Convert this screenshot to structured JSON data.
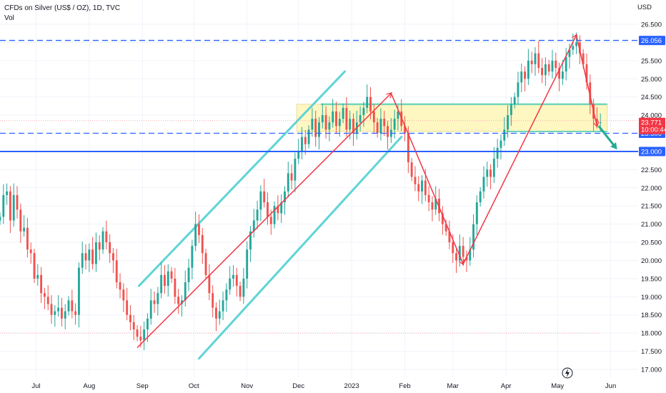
{
  "header": {
    "title": "CFDs on Silver (US$ / OZ), 1D, TVC",
    "subtitle": "Vol"
  },
  "chart_data": {
    "type": "candlestick",
    "currency": "USD",
    "ylim": [
      16.8,
      27.0
    ],
    "y_ticks": [
      17.0,
      17.5,
      18.0,
      18.5,
      19.0,
      19.5,
      20.0,
      20.5,
      21.0,
      21.5,
      22.0,
      22.5,
      23.0,
      23.5,
      24.0,
      24.5,
      25.0,
      25.5,
      26.0,
      26.5
    ],
    "y_tick_labels": [
      "17.000",
      "17.500",
      "18.000",
      "18.500",
      "19.000",
      "19.500",
      "20.000",
      "20.500",
      "21.000",
      "21.500",
      "22.000",
      "22.500",
      "23.000",
      "23.500",
      "24.000",
      "24.500",
      "25.000",
      "25.500",
      "26.000",
      "26.500"
    ],
    "x_ticks": [
      {
        "label": "Jul",
        "day": 3
      },
      {
        "label": "Aug",
        "day": 34
      },
      {
        "label": "Sep",
        "day": 65
      },
      {
        "label": "Oct",
        "day": 95
      },
      {
        "label": "Nov",
        "day": 126
      },
      {
        "label": "Dec",
        "day": 156
      },
      {
        "label": "2023",
        "day": 187
      },
      {
        "label": "Feb",
        "day": 218
      },
      {
        "label": "Mar",
        "day": 246
      },
      {
        "label": "Apr",
        "day": 277
      },
      {
        "label": "May",
        "day": 307
      },
      {
        "label": "Jun",
        "day": 338
      }
    ],
    "xlim": [
      -18,
      354
    ],
    "closes": [
      [
        -18,
        21.2
      ],
      [
        -16,
        21.8
      ],
      [
        -14,
        21.9
      ],
      [
        -12,
        21.1
      ],
      [
        -10,
        21.8
      ],
      [
        -8,
        21.4
      ],
      [
        -6,
        20.8
      ],
      [
        -4,
        20.9
      ],
      [
        -2,
        20.3
      ],
      [
        0,
        20.2
      ],
      [
        2,
        19.5
      ],
      [
        4,
        19.6
      ],
      [
        6,
        19.1
      ],
      [
        8,
        19.0
      ],
      [
        10,
        18.8
      ],
      [
        12,
        18.5
      ],
      [
        14,
        18.6
      ],
      [
        16,
        18.7
      ],
      [
        18,
        18.4
      ],
      [
        20,
        18.6
      ],
      [
        22,
        18.9
      ],
      [
        24,
        18.6
      ],
      [
        26,
        18.5
      ],
      [
        28,
        19.8
      ],
      [
        30,
        20.2
      ],
      [
        32,
        20.0
      ],
      [
        34,
        20.3
      ],
      [
        36,
        19.9
      ],
      [
        38,
        20.5
      ],
      [
        40,
        20.3
      ],
      [
        42,
        20.8
      ],
      [
        44,
        20.5
      ],
      [
        46,
        20.2
      ],
      [
        48,
        20.0
      ],
      [
        50,
        19.4
      ],
      [
        52,
        19.2
      ],
      [
        54,
        18.9
      ],
      [
        56,
        18.5
      ],
      [
        58,
        18.3
      ],
      [
        60,
        18.1
      ],
      [
        62,
        17.9
      ],
      [
        64,
        17.8
      ],
      [
        66,
        18.1
      ],
      [
        68,
        18.4
      ],
      [
        70,
        18.9
      ],
      [
        72,
        18.8
      ],
      [
        74,
        19.1
      ],
      [
        76,
        19.6
      ],
      [
        78,
        19.3
      ],
      [
        80,
        19.7
      ],
      [
        82,
        19.5
      ],
      [
        84,
        19.0
      ],
      [
        86,
        18.8
      ],
      [
        88,
        18.9
      ],
      [
        90,
        19.4
      ],
      [
        92,
        19.8
      ],
      [
        94,
        20.4
      ],
      [
        96,
        21.0
      ],
      [
        98,
        20.7
      ],
      [
        100,
        20.2
      ],
      [
        102,
        19.6
      ],
      [
        104,
        19.1
      ],
      [
        106,
        18.7
      ],
      [
        108,
        18.4
      ],
      [
        110,
        18.6
      ],
      [
        112,
        18.9
      ],
      [
        114,
        19.2
      ],
      [
        116,
        19.5
      ],
      [
        118,
        19.6
      ],
      [
        120,
        19.3
      ],
      [
        122,
        19.0
      ],
      [
        124,
        19.5
      ],
      [
        126,
        20.3
      ],
      [
        128,
        20.8
      ],
      [
        130,
        21.1
      ],
      [
        132,
        21.4
      ],
      [
        134,
        21.9
      ],
      [
        136,
        21.6
      ],
      [
        138,
        21.2
      ],
      [
        140,
        21.0
      ],
      [
        142,
        21.5
      ],
      [
        144,
        21.3
      ],
      [
        146,
        21.6
      ],
      [
        148,
        21.9
      ],
      [
        150,
        22.4
      ],
      [
        152,
        22.2
      ],
      [
        154,
        22.8
      ],
      [
        156,
        23.0
      ],
      [
        158,
        23.4
      ],
      [
        160,
        23.2
      ],
      [
        162,
        23.6
      ],
      [
        164,
        23.9
      ],
      [
        166,
        23.4
      ],
      [
        168,
        23.8
      ],
      [
        170,
        24.0
      ],
      [
        172,
        23.6
      ],
      [
        174,
        23.8
      ],
      [
        176,
        24.1
      ],
      [
        178,
        23.7
      ],
      [
        180,
        23.9
      ],
      [
        182,
        24.2
      ],
      [
        184,
        23.6
      ],
      [
        186,
        23.9
      ],
      [
        188,
        23.5
      ],
      [
        190,
        23.8
      ],
      [
        192,
        24.0
      ],
      [
        194,
        24.2
      ],
      [
        196,
        24.5
      ],
      [
        198,
        24.1
      ],
      [
        200,
        23.8
      ],
      [
        202,
        23.5
      ],
      [
        204,
        23.9
      ],
      [
        206,
        23.7
      ],
      [
        208,
        23.4
      ],
      [
        210,
        23.6
      ],
      [
        212,
        23.9
      ],
      [
        214,
        24.1
      ],
      [
        216,
        23.7
      ],
      [
        218,
        23.5
      ],
      [
        220,
        22.7
      ],
      [
        222,
        22.3
      ],
      [
        224,
        22.1
      ],
      [
        226,
        21.9
      ],
      [
        228,
        22.2
      ],
      [
        230,
        21.8
      ],
      [
        232,
        21.6
      ],
      [
        234,
        21.4
      ],
      [
        236,
        21.7
      ],
      [
        238,
        21.3
      ],
      [
        240,
        21.0
      ],
      [
        242,
        20.8
      ],
      [
        244,
        20.5
      ],
      [
        246,
        20.2
      ],
      [
        248,
        20.0
      ],
      [
        250,
        20.4
      ],
      [
        252,
        20.1
      ],
      [
        254,
        20.0
      ],
      [
        256,
        20.3
      ],
      [
        258,
        21.0
      ],
      [
        260,
        21.6
      ],
      [
        262,
        21.9
      ],
      [
        264,
        22.3
      ],
      [
        266,
        22.5
      ],
      [
        268,
        22.3
      ],
      [
        270,
        22.8
      ],
      [
        272,
        23.1
      ],
      [
        274,
        23.3
      ],
      [
        276,
        23.6
      ],
      [
        278,
        24.0
      ],
      [
        280,
        24.3
      ],
      [
        282,
        24.5
      ],
      [
        284,
        24.9
      ],
      [
        286,
        25.2
      ],
      [
        288,
        25.0
      ],
      [
        290,
        25.5
      ],
      [
        292,
        25.4
      ],
      [
        294,
        25.7
      ],
      [
        296,
        25.3
      ],
      [
        298,
        25.1
      ],
      [
        300,
        25.4
      ],
      [
        302,
        25.2
      ],
      [
        304,
        25.5
      ],
      [
        306,
        25.3
      ],
      [
        308,
        25.0
      ],
      [
        310,
        25.2
      ],
      [
        312,
        25.6
      ],
      [
        314,
        25.8
      ],
      [
        316,
        25.9
      ],
      [
        318,
        26.0
      ],
      [
        320,
        25.7
      ],
      [
        322,
        25.4
      ],
      [
        324,
        24.9
      ],
      [
        326,
        24.3
      ],
      [
        328,
        23.9
      ],
      [
        330,
        23.8
      ],
      [
        332,
        23.8
      ]
    ],
    "levels": [
      {
        "id": "level-26056",
        "value": 26.056,
        "label": "26.056",
        "style": "dashed",
        "color": "#2962ff"
      },
      {
        "id": "level-23500",
        "value": 23.5,
        "label": "23.500",
        "style": "dashed",
        "color": "#2962ff"
      },
      {
        "id": "level-23000",
        "value": 23.0,
        "label": "23.000",
        "style": "solid",
        "color": "#2962ff"
      }
    ],
    "current_price": {
      "value": 23.771,
      "label": "23.771",
      "time": "10:00:44",
      "color": "#f23645"
    },
    "dotted_levels": [
      {
        "value": 23.85,
        "from_day": -18,
        "to_day": 354,
        "color": "#f7a8ae"
      },
      {
        "value": 18.0,
        "from_day": -18,
        "to_day": 332,
        "color": "#f7a8ae"
      }
    ],
    "channel_lines": [
      {
        "from": [
          63,
          19.3
        ],
        "to": [
          183,
          25.2
        ],
        "color": "#5fd4d6"
      },
      {
        "from": [
          98,
          17.3
        ],
        "to": [
          216,
          23.4
        ],
        "color": "#5fd4d6"
      }
    ],
    "zone": {
      "from_day": 155,
      "to_day": 336,
      "top": 24.3,
      "bottom": 23.55,
      "fill": "#fff7c2",
      "border": "#e8df9a",
      "top_line": "#6fd6b8",
      "bottom_line": "#6fd6b8",
      "top_line_from": 169,
      "bottom_line_from": 277
    },
    "trend_lines": [
      {
        "points": [
          [
            62,
            17.6
          ],
          [
            210,
            24.6
          ]
        ],
        "color": "#f23645",
        "arrow": true
      },
      {
        "points": [
          [
            210,
            24.6
          ],
          [
            252,
            19.9
          ]
        ],
        "color": "#f23645",
        "arrow": true
      },
      {
        "points": [
          [
            252,
            19.9
          ],
          [
            318,
            26.2
          ]
        ],
        "color": "#f23645",
        "arrow": true
      },
      {
        "points": [
          [
            318,
            26.2
          ],
          [
            330,
            23.7
          ]
        ],
        "color": "#f23645",
        "arrow": true
      }
    ],
    "projection_arrow": {
      "from": [
        331,
        23.7
      ],
      "to": [
        341,
        23.1
      ],
      "color": "#22ab94"
    },
    "replay_icon": "lightning-icon",
    "colors": {
      "up": "#26a69a",
      "down": "#ef5350",
      "grid": "#f0f3fa"
    }
  }
}
